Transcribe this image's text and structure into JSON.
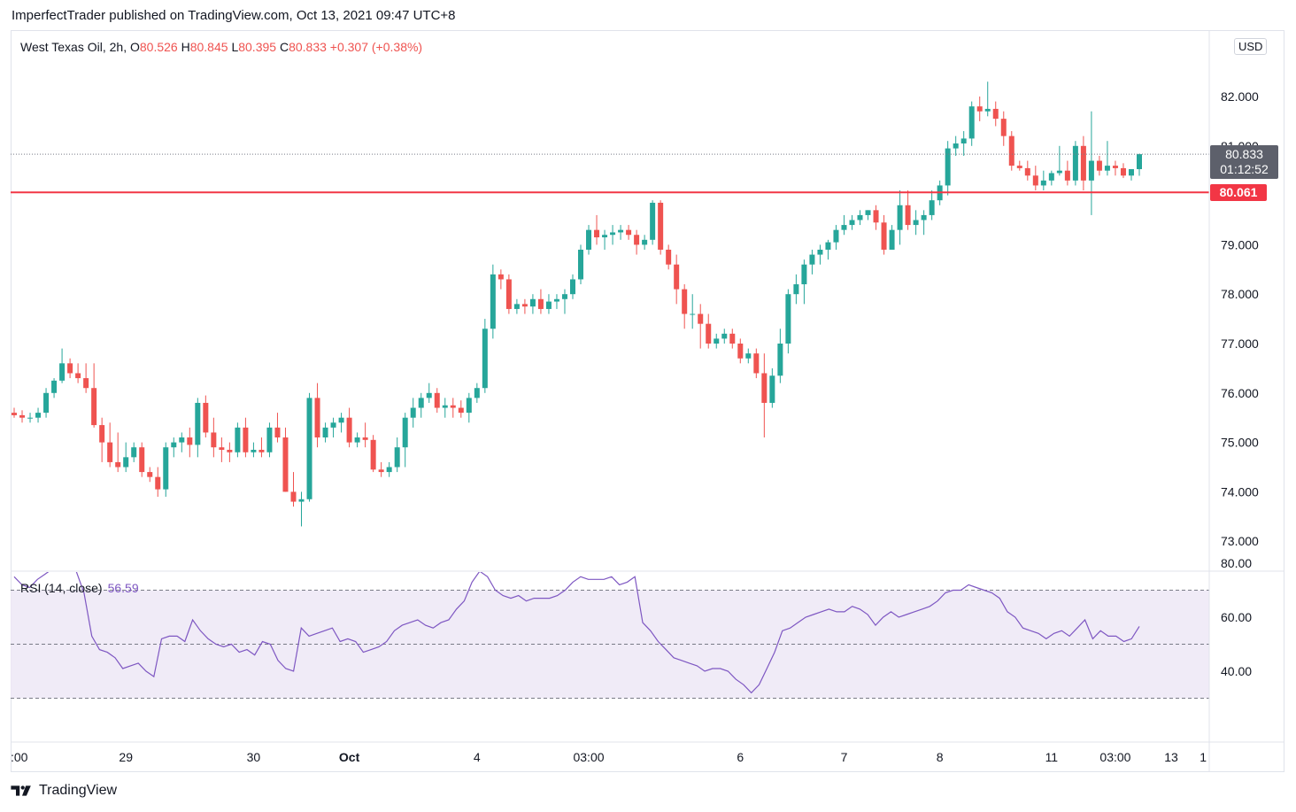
{
  "header": "ImperfectTrader published on TradingView.com, Oct 13, 2021 09:47 UTC+8",
  "legend": {
    "symbol": "West Texas Oil, 2h,",
    "o_label": "O",
    "o_value": "80.526",
    "h_label": "H",
    "h_value": "80.845",
    "l_label": "L",
    "l_value": "80.395",
    "c_label": "C",
    "c_value": "80.833",
    "change": "+0.307 (+0.38%)"
  },
  "currency": "USD",
  "last_price": "80.833",
  "countdown": "01:12:52",
  "level_label": "80.061",
  "rsi_legend": {
    "label": "RSI (14, close)",
    "value": "56.59"
  },
  "footer": {
    "brand": "TradingView",
    "logo_icon": "tradingview-logo-icon"
  },
  "colors": {
    "up": "#26a69a",
    "down": "#ef5350",
    "level": "#f23645",
    "rsi": "#7e57c2",
    "rsi_band": "#ede7f6"
  },
  "chart_data": [
    {
      "type": "candlestick",
      "title": "West Texas Oil, 2h",
      "yticks": [
        "82.000",
        "81.000",
        "79.000",
        "78.000",
        "77.000",
        "76.000",
        "75.000",
        "74.000",
        "73.000"
      ],
      "ylim": [
        72.4,
        83.2
      ],
      "xticks": [
        ":00",
        "29",
        "30",
        "Oct",
        "4",
        "03:00",
        "6",
        "7",
        "8",
        "11",
        "03:00",
        "13",
        "1"
      ],
      "horizontal_level": 80.061,
      "last_close": 80.833,
      "series": [
        {
          "name": "West Texas Oil",
          "ohlc": [
            [
              75.6,
              75.7,
              75.5,
              75.55
            ],
            [
              75.55,
              75.65,
              75.4,
              75.5
            ],
            [
              75.5,
              75.6,
              75.4,
              75.5
            ],
            [
              75.5,
              75.7,
              75.4,
              75.6
            ],
            [
              75.6,
              76.1,
              75.5,
              76.0
            ],
            [
              76.0,
              76.3,
              75.9,
              76.25
            ],
            [
              76.25,
              76.9,
              76.2,
              76.6
            ],
            [
              76.6,
              76.7,
              76.3,
              76.4
            ],
            [
              76.4,
              76.6,
              76.2,
              76.3
            ],
            [
              76.3,
              76.6,
              76.0,
              76.1
            ],
            [
              76.1,
              76.6,
              75.3,
              75.35
            ],
            [
              75.35,
              75.5,
              74.6,
              75.0
            ],
            [
              75.0,
              75.4,
              74.5,
              74.6
            ],
            [
              74.6,
              75.2,
              74.4,
              74.5
            ],
            [
              74.5,
              75.0,
              74.4,
              74.7
            ],
            [
              74.7,
              75.0,
              74.6,
              74.9
            ],
            [
              74.9,
              75.0,
              74.3,
              74.4
            ],
            [
              74.4,
              74.5,
              74.2,
              74.3
            ],
            [
              74.3,
              74.5,
              73.9,
              74.05
            ],
            [
              74.05,
              75.0,
              73.9,
              74.9
            ],
            [
              74.9,
              75.1,
              74.7,
              75.0
            ],
            [
              75.0,
              75.2,
              74.8,
              75.1
            ],
            [
              75.1,
              75.3,
              74.7,
              74.95
            ],
            [
              74.95,
              75.9,
              74.7,
              75.8
            ],
            [
              75.8,
              75.95,
              75.1,
              75.2
            ],
            [
              75.2,
              75.5,
              74.7,
              74.9
            ],
            [
              74.9,
              75.1,
              74.6,
              74.85
            ],
            [
              74.85,
              75.0,
              74.6,
              74.8
            ],
            [
              74.8,
              75.4,
              74.7,
              75.3
            ],
            [
              75.3,
              75.5,
              74.7,
              74.8
            ],
            [
              74.8,
              75.0,
              74.7,
              74.85
            ],
            [
              74.85,
              75.1,
              74.7,
              74.8
            ],
            [
              74.8,
              75.4,
              74.7,
              75.3
            ],
            [
              75.3,
              75.6,
              75.0,
              75.1
            ],
            [
              75.1,
              75.3,
              74.0,
              74.0
            ],
            [
              74.0,
              74.4,
              73.7,
              73.8
            ],
            [
              73.8,
              74.0,
              73.3,
              73.85
            ],
            [
              73.85,
              76.0,
              73.8,
              75.9
            ],
            [
              75.9,
              76.2,
              74.9,
              75.1
            ],
            [
              75.1,
              75.4,
              75.0,
              75.3
            ],
            [
              75.3,
              75.5,
              75.1,
              75.4
            ],
            [
              75.4,
              75.6,
              75.2,
              75.5
            ],
            [
              75.5,
              75.7,
              74.9,
              75.0
            ],
            [
              75.0,
              75.2,
              74.9,
              75.1
            ],
            [
              75.1,
              75.4,
              74.9,
              75.05
            ],
            [
              75.05,
              75.15,
              74.4,
              74.45
            ],
            [
              74.45,
              74.6,
              74.3,
              74.4
            ],
            [
              74.4,
              74.6,
              74.3,
              74.5
            ],
            [
              74.5,
              75.1,
              74.4,
              74.9
            ],
            [
              74.9,
              75.6,
              74.5,
              75.5
            ],
            [
              75.5,
              75.9,
              75.3,
              75.7
            ],
            [
              75.7,
              76.0,
              75.5,
              75.9
            ],
            [
              75.9,
              76.2,
              75.8,
              76.0
            ],
            [
              76.0,
              76.1,
              75.6,
              75.7
            ],
            [
              75.7,
              75.9,
              75.5,
              75.75
            ],
            [
              75.75,
              75.9,
              75.5,
              75.7
            ],
            [
              75.7,
              75.85,
              75.5,
              75.6
            ],
            [
              75.6,
              76.0,
              75.4,
              75.9
            ],
            [
              75.9,
              76.2,
              75.8,
              76.1
            ],
            [
              76.1,
              77.5,
              76.0,
              77.3
            ],
            [
              77.3,
              78.6,
              77.1,
              78.4
            ],
            [
              78.4,
              78.5,
              78.1,
              78.3
            ],
            [
              78.3,
              78.4,
              77.6,
              77.7
            ],
            [
              77.7,
              77.9,
              77.6,
              77.8
            ],
            [
              77.8,
              77.9,
              77.6,
              77.75
            ],
            [
              77.75,
              78.0,
              77.6,
              77.9
            ],
            [
              77.9,
              78.1,
              77.6,
              77.7
            ],
            [
              77.7,
              78.0,
              77.6,
              77.85
            ],
            [
              77.85,
              78.0,
              77.7,
              77.9
            ],
            [
              77.9,
              78.1,
              77.6,
              78.0
            ],
            [
              78.0,
              78.4,
              77.9,
              78.3
            ],
            [
              78.3,
              79.0,
              78.2,
              78.9
            ],
            [
              78.9,
              79.4,
              78.8,
              79.3
            ],
            [
              79.3,
              79.6,
              79.0,
              79.15
            ],
            [
              79.15,
              79.3,
              78.9,
              79.2
            ],
            [
              79.2,
              79.4,
              79.0,
              79.25
            ],
            [
              79.25,
              79.4,
              79.1,
              79.3
            ],
            [
              79.3,
              79.4,
              79.1,
              79.2
            ],
            [
              79.2,
              79.3,
              78.8,
              79.0
            ],
            [
              79.0,
              79.2,
              78.9,
              79.1
            ],
            [
              79.1,
              79.9,
              79.0,
              79.85
            ],
            [
              79.85,
              79.9,
              78.8,
              78.9
            ],
            [
              78.9,
              79.0,
              78.5,
              78.6
            ],
            [
              78.6,
              78.8,
              77.8,
              78.1
            ],
            [
              78.1,
              78.2,
              77.3,
              77.6
            ],
            [
              77.6,
              78.0,
              77.3,
              77.6
            ],
            [
              77.6,
              77.8,
              76.9,
              77.4
            ],
            [
              77.4,
              77.6,
              76.9,
              77.0
            ],
            [
              77.0,
              77.2,
              76.9,
              77.1
            ],
            [
              77.1,
              77.3,
              77.0,
              77.2
            ],
            [
              77.2,
              77.3,
              76.9,
              77.0
            ],
            [
              77.0,
              77.1,
              76.6,
              76.7
            ],
            [
              76.7,
              76.9,
              76.6,
              76.8
            ],
            [
              76.8,
              76.9,
              76.3,
              76.4
            ],
            [
              76.4,
              76.8,
              75.1,
              75.8
            ],
            [
              75.8,
              76.5,
              75.7,
              76.35
            ],
            [
              76.35,
              77.3,
              76.2,
              77.0
            ],
            [
              77.0,
              78.1,
              76.8,
              78.0
            ],
            [
              78.0,
              78.4,
              77.8,
              78.2
            ],
            [
              78.2,
              78.7,
              77.8,
              78.6
            ],
            [
              78.6,
              78.9,
              78.4,
              78.8
            ],
            [
              78.8,
              79.0,
              78.6,
              78.9
            ],
            [
              78.9,
              79.1,
              78.7,
              79.05
            ],
            [
              79.05,
              79.4,
              78.9,
              79.3
            ],
            [
              79.3,
              79.6,
              79.2,
              79.4
            ],
            [
              79.4,
              79.6,
              79.3,
              79.5
            ],
            [
              79.5,
              79.7,
              79.4,
              79.6
            ],
            [
              79.6,
              79.7,
              79.5,
              79.7
            ],
            [
              79.7,
              79.8,
              79.3,
              79.45
            ],
            [
              79.45,
              79.6,
              78.8,
              78.9
            ],
            [
              78.9,
              79.4,
              78.9,
              79.3
            ],
            [
              79.3,
              80.1,
              79.0,
              79.8
            ],
            [
              79.8,
              80.1,
              79.3,
              79.4
            ],
            [
              79.4,
              79.7,
              79.2,
              79.5
            ],
            [
              79.5,
              79.7,
              79.2,
              79.6
            ],
            [
              79.6,
              80.1,
              79.5,
              79.9
            ],
            [
              79.9,
              80.3,
              79.8,
              80.2
            ],
            [
              80.2,
              81.1,
              80.0,
              80.95
            ],
            [
              80.95,
              81.2,
              80.8,
              81.05
            ],
            [
              81.05,
              81.3,
              80.8,
              81.15
            ],
            [
              81.15,
              81.9,
              81.0,
              81.8
            ],
            [
              81.8,
              82.0,
              81.5,
              81.7
            ],
            [
              81.7,
              82.3,
              81.6,
              81.75
            ],
            [
              81.75,
              81.9,
              81.4,
              81.55
            ],
            [
              81.55,
              81.7,
              81.0,
              81.2
            ],
            [
              81.2,
              81.3,
              80.5,
              80.6
            ],
            [
              80.6,
              80.7,
              80.5,
              80.55
            ],
            [
              80.55,
              80.7,
              80.3,
              80.4
            ],
            [
              80.4,
              80.6,
              80.1,
              80.2
            ],
            [
              80.2,
              80.5,
              80.1,
              80.3
            ],
            [
              80.3,
              80.5,
              80.2,
              80.45
            ],
            [
              80.45,
              81.0,
              80.4,
              80.5
            ],
            [
              80.5,
              80.7,
              80.2,
              80.3
            ],
            [
              80.3,
              81.1,
              80.2,
              81.0
            ],
            [
              81.0,
              81.2,
              80.1,
              80.3
            ],
            [
              80.3,
              81.7,
              79.6,
              80.7
            ],
            [
              80.7,
              80.8,
              80.4,
              80.5
            ],
            [
              80.5,
              81.1,
              80.4,
              80.6
            ],
            [
              80.6,
              80.7,
              80.4,
              80.55
            ],
            [
              80.55,
              80.65,
              80.35,
              80.4
            ],
            [
              80.4,
              80.5,
              80.3,
              80.53
            ],
            [
              80.53,
              80.845,
              80.395,
              80.833
            ]
          ]
        }
      ]
    },
    {
      "type": "line",
      "title": "RSI (14, close)",
      "yticks": [
        "80.00",
        "60.00",
        "40.00"
      ],
      "ylim": [
        30,
        84
      ],
      "bands": [
        30,
        50,
        70
      ],
      "last_value": 56.59,
      "series": [
        {
          "name": "RSI (14, close)",
          "values": [
            75,
            72,
            71,
            74,
            76,
            78,
            81,
            80,
            77,
            69,
            53,
            48,
            47,
            45,
            41,
            42,
            43,
            40,
            38,
            52,
            53,
            53,
            51,
            59,
            55,
            52,
            50,
            49,
            50,
            47,
            48,
            46,
            51,
            50,
            44,
            41,
            40,
            56,
            53,
            54,
            55,
            56,
            51,
            52,
            51,
            47,
            48,
            49,
            51,
            55,
            57,
            58,
            59,
            57,
            56,
            58,
            59,
            63,
            66,
            73,
            77,
            75,
            70,
            68,
            67,
            68,
            66,
            67,
            67,
            67,
            68,
            70,
            73,
            75,
            74,
            74,
            74,
            75,
            72,
            73,
            75,
            58,
            55,
            51,
            48,
            45,
            44,
            43,
            42,
            40,
            41,
            41,
            40,
            37,
            35,
            32,
            35,
            41,
            47,
            55,
            56,
            58,
            60,
            61,
            62,
            63,
            62,
            62,
            64,
            63,
            61,
            57,
            60,
            62,
            60,
            61,
            62,
            63,
            64,
            66,
            69,
            70,
            70,
            72,
            71,
            70,
            69,
            67,
            62,
            60,
            56,
            55,
            54,
            52,
            54,
            55,
            53,
            56,
            59,
            52,
            55,
            53,
            53,
            51,
            52,
            56.59
          ]
        }
      ]
    }
  ]
}
